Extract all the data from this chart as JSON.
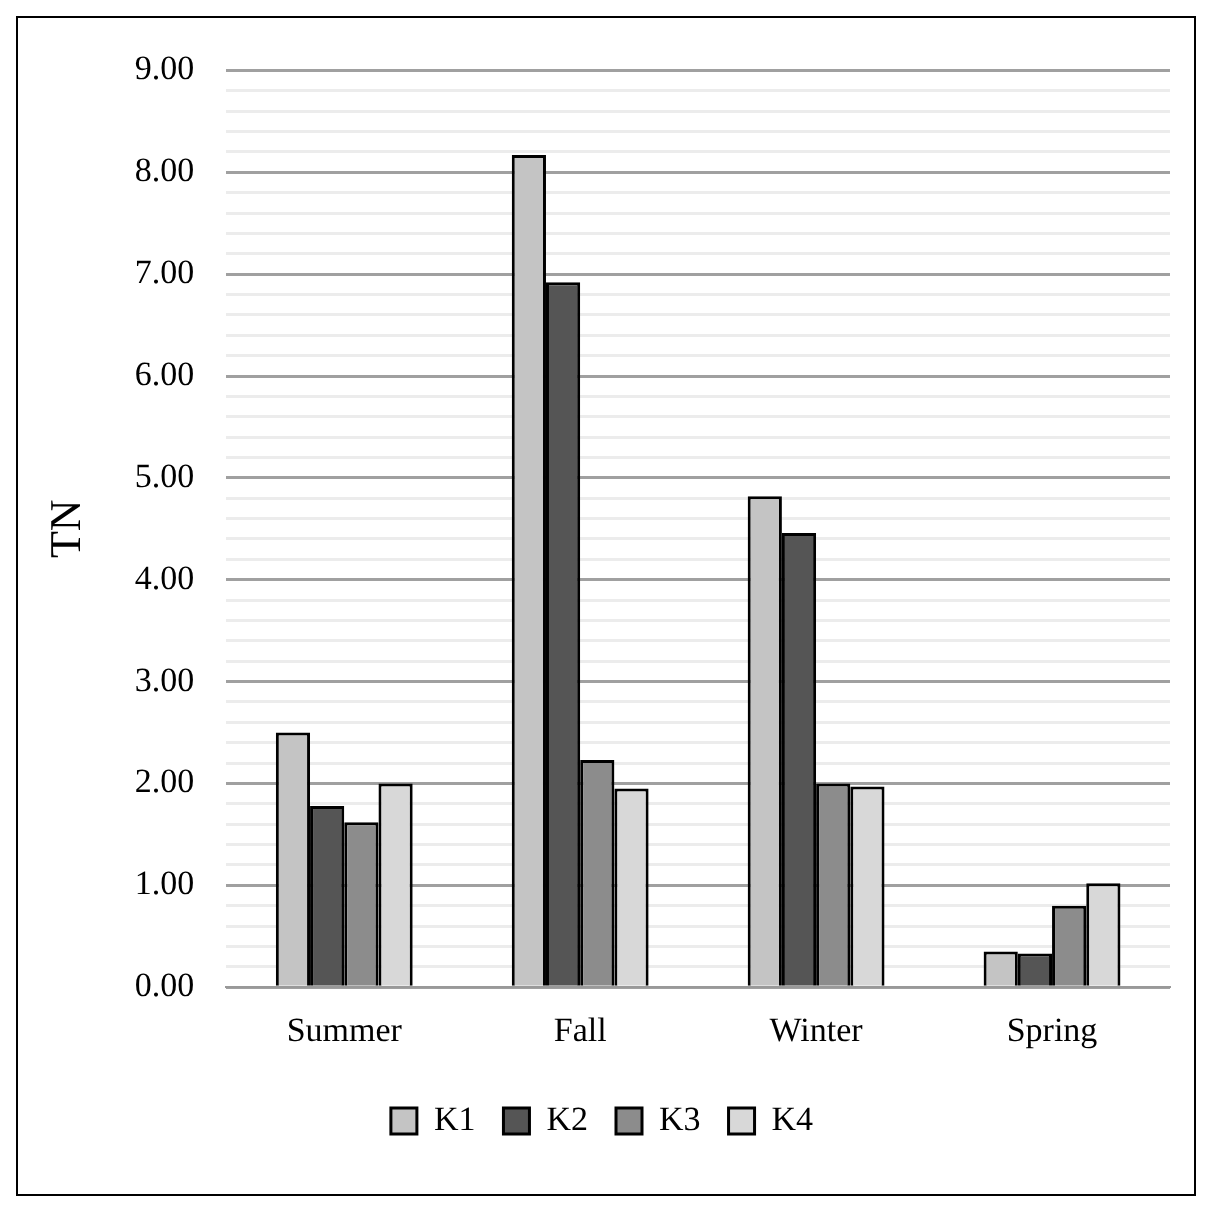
{
  "chart_data": {
    "type": "bar",
    "ylabel": "TN",
    "categories": [
      "Summer",
      "Fall",
      "Winter",
      "Spring"
    ],
    "series": [
      {
        "name": "K1",
        "color": "#c4c4c4",
        "values": [
          2.5,
          8.17,
          4.82,
          0.35
        ]
      },
      {
        "name": "K2",
        "color": "#555555",
        "values": [
          1.78,
          6.92,
          4.46,
          0.33
        ]
      },
      {
        "name": "K3",
        "color": "#8c8c8c",
        "values": [
          1.62,
          2.23,
          2.0,
          0.8
        ]
      },
      {
        "name": "K4",
        "color": "#d8d8d8",
        "values": [
          2.0,
          1.95,
          1.97,
          1.02
        ]
      }
    ],
    "ylim": [
      0,
      9
    ],
    "yticks": [
      {
        "value": 0,
        "label": "0.00"
      },
      {
        "value": 0.2,
        "label": null
      },
      {
        "value": 0.4,
        "label": null
      },
      {
        "value": 0.6,
        "label": null
      },
      {
        "value": 0.8,
        "label": null
      },
      {
        "value": 1,
        "label": "1.00"
      },
      {
        "value": 1.2,
        "label": null
      },
      {
        "value": 1.4,
        "label": null
      },
      {
        "value": 1.6,
        "label": null
      },
      {
        "value": 1.8,
        "label": null
      },
      {
        "value": 2,
        "label": "2.00"
      },
      {
        "value": 2.2,
        "label": null
      },
      {
        "value": 2.4,
        "label": null
      },
      {
        "value": 2.6,
        "label": null
      },
      {
        "value": 2.8,
        "label": null
      },
      {
        "value": 3,
        "label": "3.00"
      },
      {
        "value": 3.2,
        "label": null
      },
      {
        "value": 3.4,
        "label": null
      },
      {
        "value": 3.6,
        "label": null
      },
      {
        "value": 3.8,
        "label": null
      },
      {
        "value": 4,
        "label": "4.00"
      },
      {
        "value": 4.2,
        "label": null
      },
      {
        "value": 4.4,
        "label": null
      },
      {
        "value": 4.6,
        "label": null
      },
      {
        "value": 4.8,
        "label": null
      },
      {
        "value": 5,
        "label": "5.00"
      },
      {
        "value": 5.2,
        "label": null
      },
      {
        "value": 5.4,
        "label": null
      },
      {
        "value": 5.6,
        "label": null
      },
      {
        "value": 5.8,
        "label": null
      },
      {
        "value": 6,
        "label": "6.00"
      },
      {
        "value": 6.2,
        "label": null
      },
      {
        "value": 6.4,
        "label": null
      },
      {
        "value": 6.6,
        "label": null
      },
      {
        "value": 6.8,
        "label": null
      },
      {
        "value": 7,
        "label": "7.00"
      },
      {
        "value": 7.2,
        "label": null
      },
      {
        "value": 7.4,
        "label": null
      },
      {
        "value": 7.6,
        "label": null
      },
      {
        "value": 7.8,
        "label": null
      },
      {
        "value": 8,
        "label": "8.00"
      },
      {
        "value": 8.2,
        "label": null
      },
      {
        "value": 8.4,
        "label": null
      },
      {
        "value": 8.6,
        "label": null
      },
      {
        "value": 8.8,
        "label": null
      },
      {
        "value": 9,
        "label": "9.00"
      }
    ],
    "grid": "y",
    "legend": "bottom"
  }
}
